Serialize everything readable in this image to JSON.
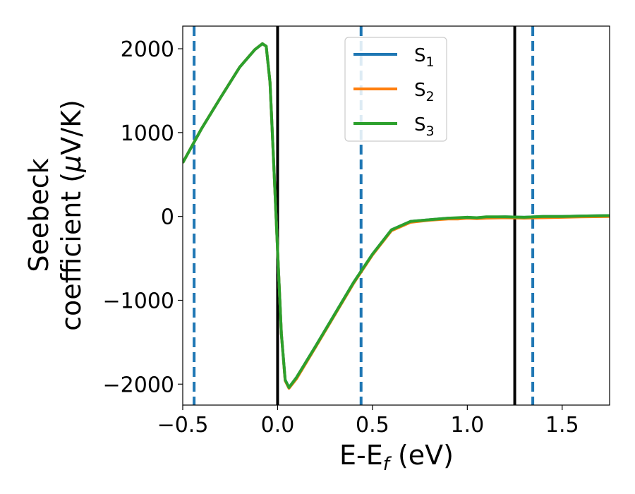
{
  "chart_data": {
    "type": "line",
    "xlabel": {
      "main": "E-E",
      "sub": "f",
      "tail": " (eV)"
    },
    "ylabel": {
      "line1": "Seebeck",
      "line2_prefix": "coefficient  (",
      "mu": "μ",
      "line2_suffix": "V/K)"
    },
    "xlim": [
      -0.5,
      1.75
    ],
    "ylim": [
      -2250,
      2270
    ],
    "xticks": [
      -0.5,
      0.0,
      0.5,
      1.0,
      1.5
    ],
    "xtick_labels": [
      "−0.5",
      "0.0",
      "0.5",
      "1.0",
      "1.5"
    ],
    "yticks": [
      -2000,
      -1000,
      0,
      1000,
      2000
    ],
    "ytick_labels": [
      "−2000",
      "−1000",
      "0",
      "1000",
      "2000"
    ],
    "vlines_solid": [
      0.0,
      1.25
    ],
    "vlines_dashed": [
      -0.44,
      0.44,
      1.345
    ],
    "grid": false,
    "legend_position": "top-center",
    "series": [
      {
        "name": "S",
        "sub": "1",
        "color": "#1f77b4",
        "x": [
          -0.5,
          -0.4,
          -0.3,
          -0.2,
          -0.12,
          -0.08,
          -0.06,
          -0.04,
          -0.02,
          0.0,
          0.02,
          0.04,
          0.06,
          0.1,
          0.2,
          0.3,
          0.4,
          0.5,
          0.6,
          0.7,
          0.8,
          0.9,
          0.95,
          1.0,
          1.05,
          1.1,
          1.2,
          1.3,
          1.4,
          1.5,
          1.6,
          1.75
        ],
        "y": [
          640,
          1050,
          1420,
          1780,
          1990,
          2060,
          2030,
          1600,
          600,
          -400,
          -1400,
          -1950,
          -2040,
          -1920,
          -1550,
          -1170,
          -790,
          -450,
          -160,
          -60,
          -40,
          -20,
          -25,
          -10,
          -20,
          -10,
          -5,
          -10,
          0,
          0,
          5,
          10
        ]
      },
      {
        "name": "S",
        "sub": "2",
        "color": "#ff7f0e",
        "x": [
          -0.5,
          -0.4,
          -0.3,
          -0.2,
          -0.12,
          -0.08,
          -0.06,
          -0.04,
          -0.02,
          0.0,
          0.02,
          0.04,
          0.06,
          0.1,
          0.2,
          0.3,
          0.4,
          0.5,
          0.6,
          0.7,
          0.8,
          0.9,
          0.95,
          1.0,
          1.05,
          1.1,
          1.2,
          1.3,
          1.4,
          1.5,
          1.6,
          1.75
        ],
        "y": [
          640,
          1050,
          1420,
          1780,
          1990,
          2060,
          2030,
          1600,
          600,
          -400,
          -1400,
          -1960,
          -2050,
          -1935,
          -1560,
          -1180,
          -800,
          -460,
          -170,
          -70,
          -45,
          -30,
          -30,
          -20,
          -25,
          -20,
          -15,
          -20,
          -15,
          -10,
          -5,
          0
        ]
      },
      {
        "name": "S",
        "sub": "3",
        "color": "#2ca02c",
        "x": [
          -0.5,
          -0.4,
          -0.3,
          -0.2,
          -0.12,
          -0.08,
          -0.06,
          -0.04,
          -0.02,
          0.0,
          0.02,
          0.04,
          0.06,
          0.1,
          0.2,
          0.3,
          0.4,
          0.5,
          0.6,
          0.7,
          0.8,
          0.9,
          0.95,
          1.0,
          1.05,
          1.1,
          1.2,
          1.3,
          1.4,
          1.5,
          1.6,
          1.75
        ],
        "y": [
          640,
          1050,
          1420,
          1780,
          1990,
          2060,
          2030,
          1600,
          600,
          -400,
          -1400,
          -1950,
          -2040,
          -1920,
          -1550,
          -1170,
          -790,
          -450,
          -160,
          -60,
          -40,
          -20,
          -15,
          -10,
          -15,
          -5,
          -5,
          -10,
          0,
          0,
          5,
          10
        ]
      }
    ]
  }
}
